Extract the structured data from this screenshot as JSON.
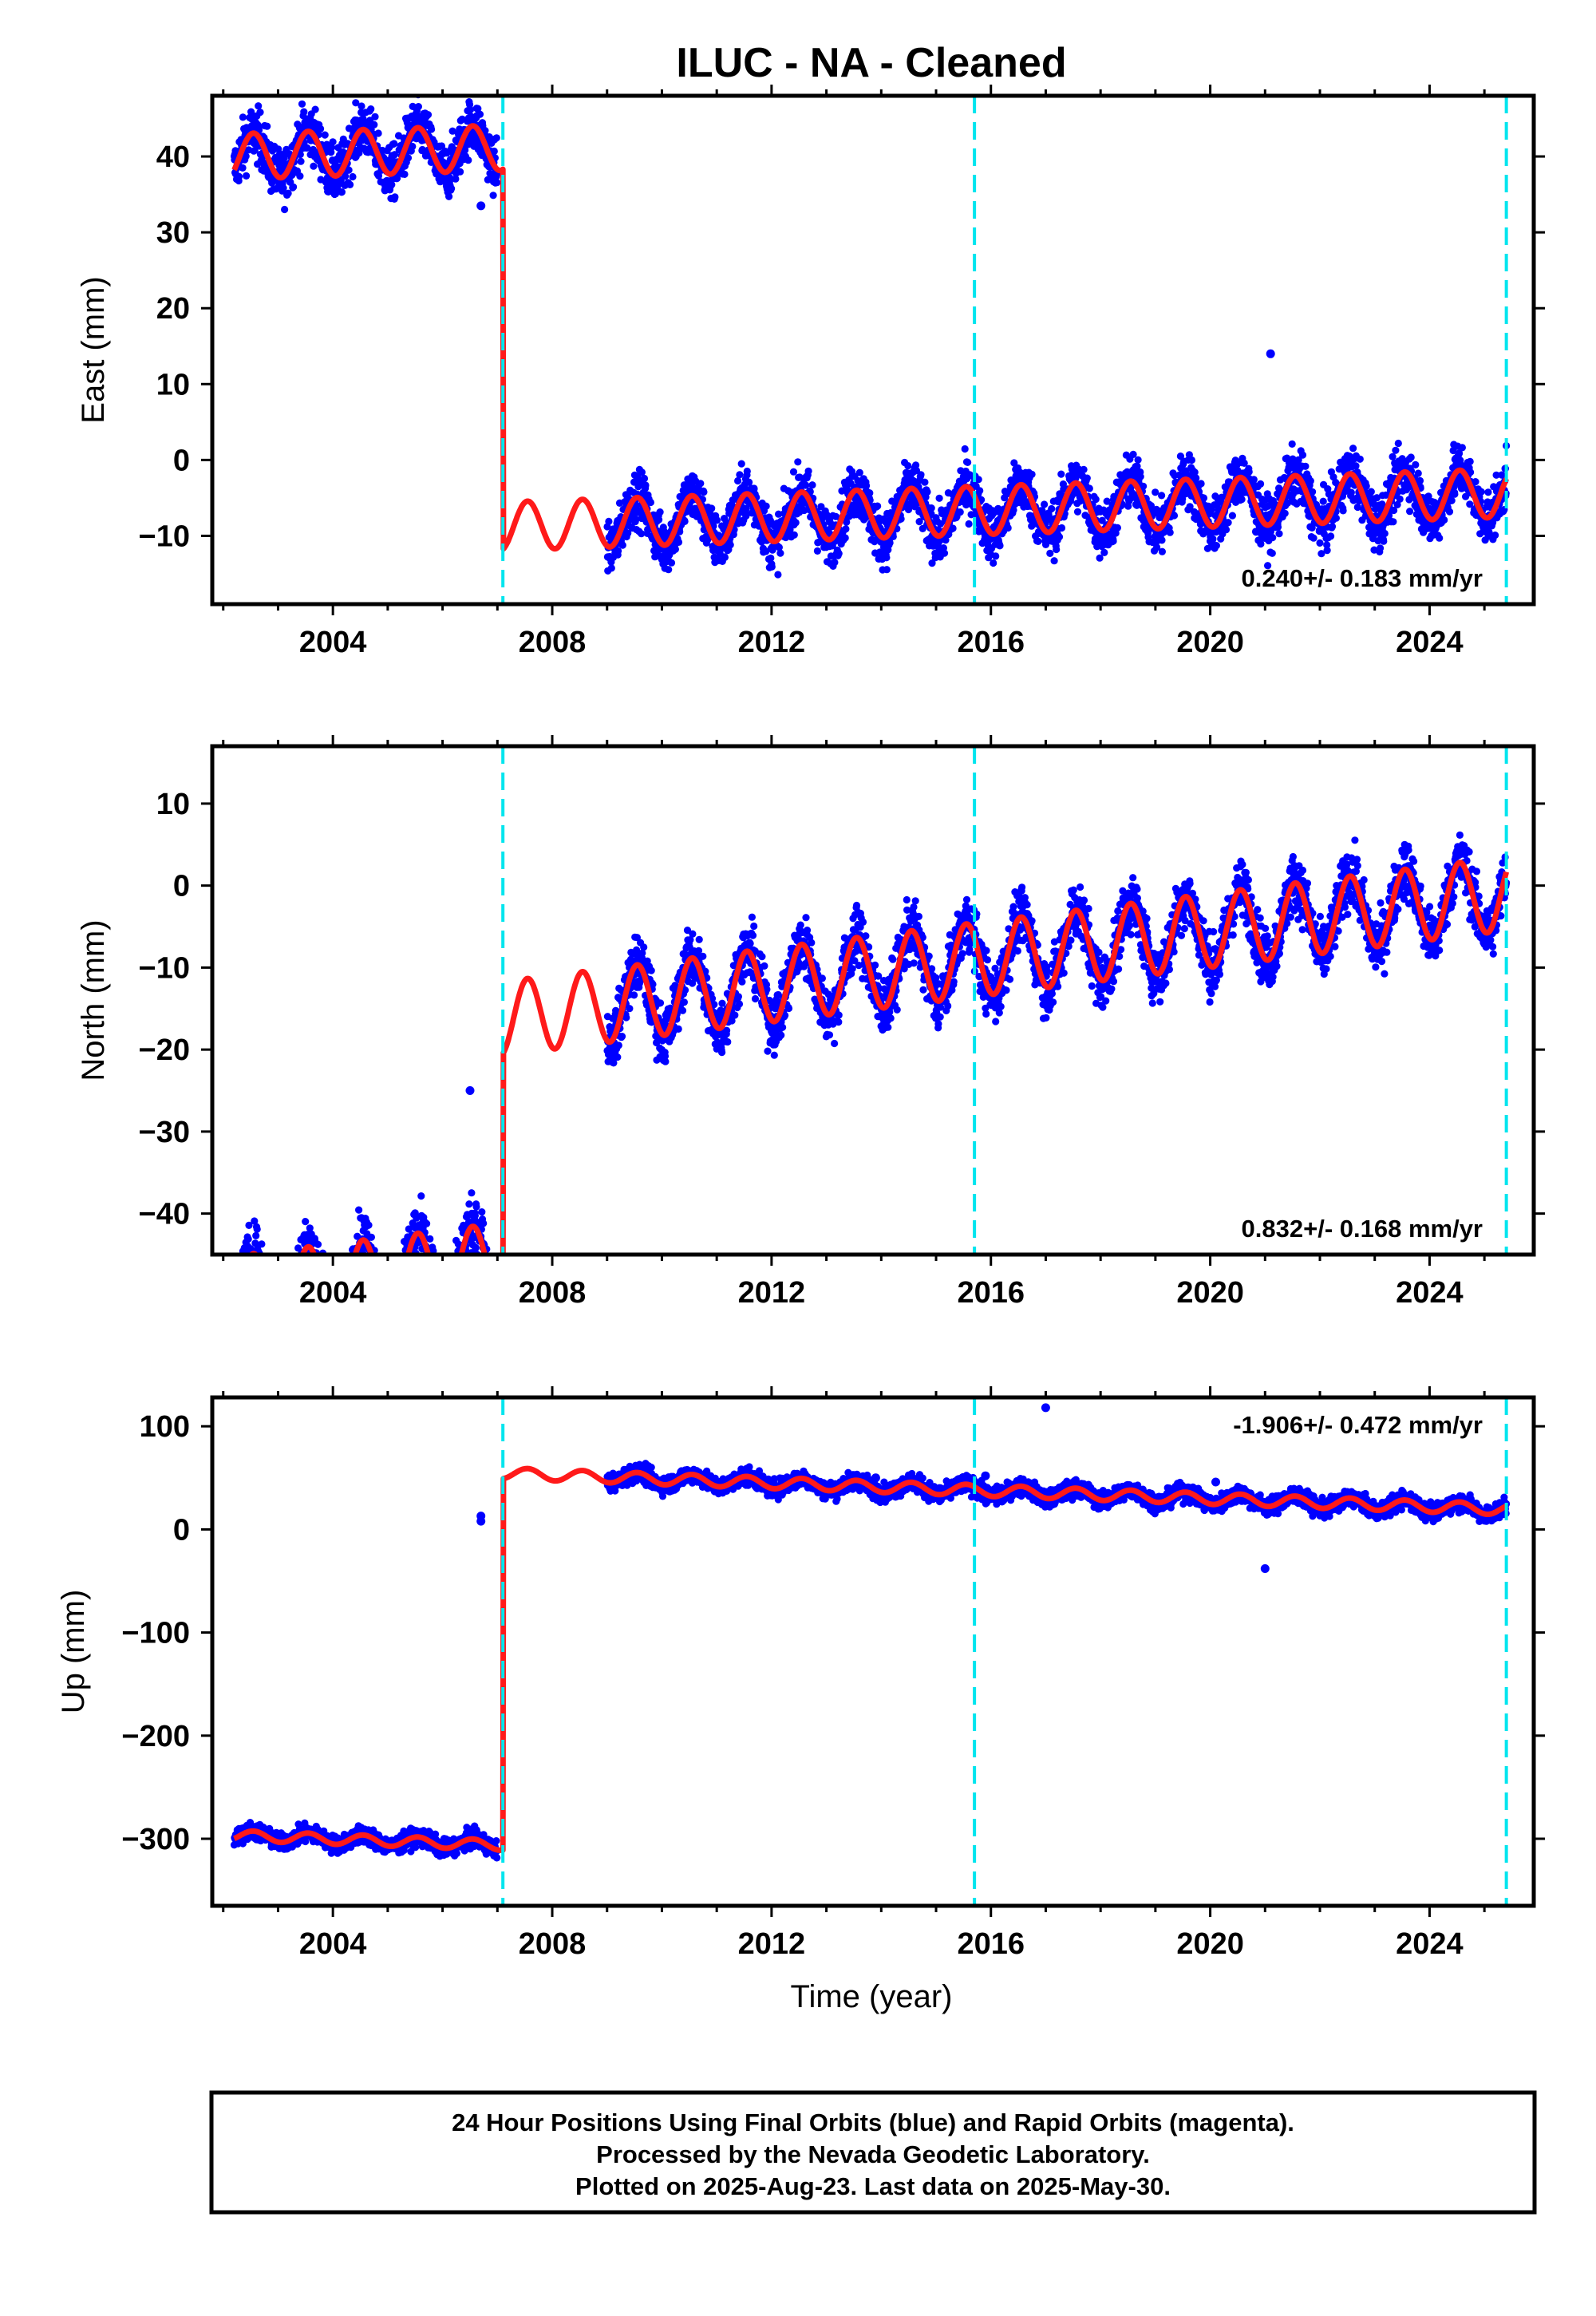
{
  "title": "ILUC  - NA - Cleaned",
  "x_axis_label": "Time (year)",
  "footer_lines": [
    "24 Hour Positions Using Final Orbits (blue) and Rapid Orbits (magenta).",
    "Processed by the Nevada Geodetic Laboratory.",
    "Plotted on 2025-Aug-23. Last data on 2025-May-30."
  ],
  "colors": {
    "data_points": "#0000ff",
    "model_line": "#ff1a1a",
    "equipment_change": "#00e5ee",
    "frame": "#000000"
  },
  "chart_data": [
    {
      "type": "scatter",
      "component": "East",
      "ylabel": "East (mm)",
      "xlim": [
        2001.8,
        2025.9
      ],
      "ylim": [
        -19,
        48
      ],
      "x_ticks": [
        2004,
        2008,
        2012,
        2016,
        2020,
        2024
      ],
      "y_ticks": [
        -10,
        0,
        10,
        20,
        30,
        40
      ],
      "rate_text": "0.240+/- 0.183 mm/yr",
      "rate_position": "bottom-right",
      "steps_years": [
        2007.1,
        2015.7,
        2025.4
      ],
      "model": {
        "segments": [
          {
            "start": 2002.2,
            "end": 2007.1,
            "offset": 43.3,
            "trend_mm_per_yr": 0.24,
            "seasonal_amplitude": 3.0
          },
          {
            "start": 2007.1,
            "end": 2025.4,
            "offset": -6.6,
            "trend_mm_per_yr": 0.24,
            "seasonal_amplitude": 3.2
          }
        ]
      },
      "observations": {
        "first": 2002.2,
        "gap_start": 2007.0,
        "gap_end": 2009.0,
        "last": 2025.4,
        "scatter_mm": 2.5
      },
      "outliers": [
        {
          "x": 2021.1,
          "y": 14
        },
        {
          "x": 2006.7,
          "y": 33.5
        }
      ]
    },
    {
      "type": "scatter",
      "component": "North",
      "ylabel": "North (mm)",
      "xlim": [
        2001.8,
        2025.9
      ],
      "ylim": [
        -45,
        17
      ],
      "x_ticks": [
        2004,
        2008,
        2012,
        2016,
        2020,
        2024
      ],
      "y_ticks": [
        -40,
        -30,
        -20,
        -10,
        0,
        10
      ],
      "rate_text": "0.832+/- 0.168 mm/yr",
      "rate_position": "bottom-right",
      "steps_years": [
        2007.1,
        2015.7,
        2025.4
      ],
      "model": {
        "segments": [
          {
            "start": 2002.2,
            "end": 2007.1,
            "offset": -38.2,
            "trend_mm_per_yr": 0.832,
            "seasonal_amplitude": 4.5
          },
          {
            "start": 2007.1,
            "end": 2025.4,
            "offset": -8.8,
            "trend_mm_per_yr": 0.832,
            "seasonal_amplitude": 4.5
          }
        ]
      },
      "observations": {
        "first": 2002.2,
        "gap_start": 2007.0,
        "gap_end": 2009.0,
        "last": 2025.4,
        "scatter_mm": 2.5
      },
      "outliers": [
        {
          "x": 2006.5,
          "y": -25
        },
        {
          "x": 2020.3,
          "y": -6
        }
      ]
    },
    {
      "type": "scatter",
      "component": "Up",
      "ylabel": "Up (mm)",
      "xlim": [
        2001.8,
        2025.9
      ],
      "ylim": [
        -365,
        128
      ],
      "x_ticks": [
        2004,
        2008,
        2012,
        2016,
        2020,
        2024
      ],
      "y_ticks": [
        -300,
        -200,
        -100,
        0,
        100
      ],
      "rate_text": "-1.906+/- 0.472 mm/yr",
      "rate_position": "top-right",
      "steps_years": [
        2007.1,
        2015.7,
        2025.4
      ],
      "model": {
        "segments": [
          {
            "start": 2002.2,
            "end": 2007.1,
            "offset": -323.2,
            "trend_mm_per_yr": -1.906,
            "seasonal_amplitude": 5.0
          },
          {
            "start": 2007.1,
            "end": 2025.4,
            "offset": 37.4,
            "trend_mm_per_yr": -1.906,
            "seasonal_amplitude": 5.5
          }
        ]
      },
      "observations": {
        "first": 2002.2,
        "gap_start": 2007.0,
        "gap_end": 2009.0,
        "last": 2025.4,
        "scatter_mm": 6
      },
      "outliers": [
        {
          "x": 2017.0,
          "y": 118
        },
        {
          "x": 2015.9,
          "y": 52
        },
        {
          "x": 2013.9,
          "y": 50
        },
        {
          "x": 2020.1,
          "y": 46
        },
        {
          "x": 2021.0,
          "y": -38
        },
        {
          "x": 2006.7,
          "y": 13
        },
        {
          "x": 2006.7,
          "y": 8
        },
        {
          "x": 2006.4,
          "y": -307
        }
      ]
    }
  ]
}
